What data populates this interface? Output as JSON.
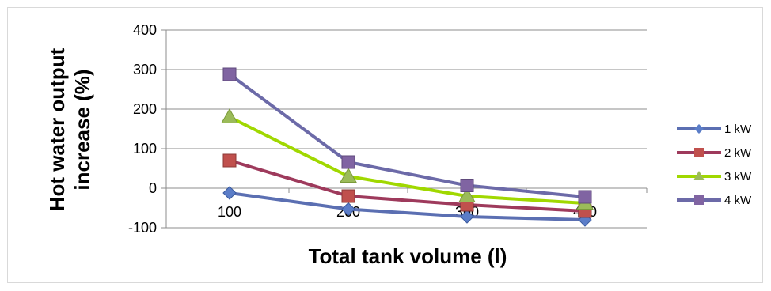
{
  "chart_data": {
    "type": "line",
    "x": [
      100,
      200,
      300,
      400
    ],
    "categories": [
      "100",
      "200",
      "300",
      "400"
    ],
    "xlabel": "Total tank volume (l)",
    "ylabel_lines": [
      "Hot water output",
      "increase (%)"
    ],
    "ylim": [
      -100,
      400
    ],
    "yticks": [
      -100,
      0,
      100,
      200,
      300,
      400
    ],
    "grid": true,
    "legend": "right",
    "series": [
      {
        "name": "1 kW",
        "color": "#5b6fb2",
        "marker": "diamond",
        "values": [
          -12,
          -53,
          -72,
          -80
        ]
      },
      {
        "name": "2 kW",
        "color": "#9e3a5c",
        "marker": "square",
        "values": [
          70,
          -20,
          -42,
          -58
        ]
      },
      {
        "name": "3 kW",
        "color": "#a0d800",
        "marker": "triangle",
        "values": [
          180,
          30,
          -20,
          -38
        ]
      },
      {
        "name": "4 kW",
        "color": "#6c6aa8",
        "marker": "square",
        "values": [
          288,
          66,
          7,
          -22
        ]
      }
    ],
    "marker_colors": {
      "1 kW": "#5b7dc8",
      "2 kW": "#c0504d",
      "3 kW": "#9bbb59",
      "4 kW": "#8064a2"
    }
  }
}
